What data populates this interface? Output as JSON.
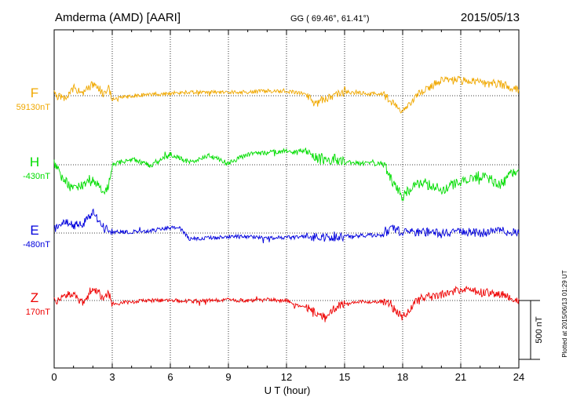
{
  "header": {
    "station": "Amderma (AMD)  [AARI]",
    "coords": "GG ( 69.46°,  61.41°)",
    "date": "2015/05/13"
  },
  "footer": {
    "plotted": "Plotted at 2015/06/13 01:29 UT"
  },
  "scale_bar": {
    "label": "500 nT",
    "value": 500
  },
  "colors": {
    "F": "#f0a800",
    "H": "#00dd00",
    "E": "#0000dd",
    "Z": "#ee0000",
    "axis": "#000000"
  },
  "chart_data": {
    "type": "line",
    "title": "Amderma (AMD)  [AARI]",
    "xlabel": "U T (hour)",
    "ylabel": "",
    "xlim": [
      0,
      24
    ],
    "x_ticks": [
      "0",
      "3",
      "6",
      "9",
      "12",
      "15",
      "18",
      "21",
      "24"
    ],
    "grid": true,
    "y_scale_note": "500 nT",
    "series": [
      {
        "name": "F",
        "baseline_label": "59130nT",
        "baseline": 59130,
        "x": [
          0,
          0.5,
          1,
          1.5,
          2,
          2.5,
          2.8,
          3,
          4,
          5,
          6,
          7,
          8,
          9,
          10,
          11,
          12,
          12.5,
          13,
          13.5,
          14,
          14.5,
          15,
          16,
          17,
          17.5,
          18,
          18.5,
          19,
          20,
          21,
          22,
          23,
          24
        ],
        "values": [
          59140,
          59110,
          59200,
          59150,
          59230,
          59150,
          59210,
          59100,
          59130,
          59140,
          59150,
          59160,
          59160,
          59160,
          59160,
          59170,
          59165,
          59160,
          59150,
          59060,
          59110,
          59130,
          59160,
          59150,
          59140,
          59070,
          58980,
          59100,
          59170,
          59260,
          59260,
          59240,
          59230,
          59180
        ]
      },
      {
        "name": "H",
        "baseline_label": "-430nT",
        "baseline": -430,
        "x": [
          0,
          0.5,
          1,
          1.5,
          2,
          2.5,
          2.8,
          3,
          4,
          5,
          6,
          7,
          8,
          9,
          10,
          11,
          12,
          12.5,
          13,
          13.5,
          14,
          14.5,
          15,
          16,
          17,
          17.5,
          18,
          18.5,
          19,
          20,
          21,
          22,
          23,
          24
        ],
        "values": [
          -430,
          -560,
          -640,
          -600,
          -560,
          -650,
          -620,
          -430,
          -380,
          -440,
          -340,
          -410,
          -350,
          -420,
          -340,
          -330,
          -310,
          -320,
          -300,
          -360,
          -410,
          -380,
          -410,
          -420,
          -420,
          -580,
          -700,
          -620,
          -580,
          -640,
          -580,
          -520,
          -600,
          -460
        ]
      },
      {
        "name": "E",
        "baseline_label": "-480nT",
        "baseline": -480,
        "x": [
          0,
          0.5,
          1,
          1.5,
          2,
          2.5,
          2.8,
          3,
          4,
          5,
          6,
          6.5,
          7,
          8,
          9,
          10,
          11,
          12,
          13,
          14,
          15,
          16,
          17,
          17.5,
          18,
          19,
          20,
          21,
          22,
          23,
          24
        ],
        "values": [
          -460,
          -380,
          -420,
          -400,
          -300,
          -420,
          -440,
          -470,
          -470,
          -460,
          -430,
          -440,
          -530,
          -520,
          -510,
          -510,
          -520,
          -520,
          -510,
          -520,
          -510,
          -500,
          -500,
          -440,
          -480,
          -470,
          -480,
          -470,
          -480,
          -460,
          -480
        ]
      },
      {
        "name": "Z",
        "baseline_label": "170nT",
        "baseline": 170,
        "x": [
          0,
          0.5,
          1,
          1.5,
          2,
          2.5,
          2.8,
          3,
          4,
          5,
          6,
          7,
          8,
          9,
          10,
          11,
          12,
          12.5,
          13,
          13.5,
          14,
          14.5,
          15,
          16,
          17,
          17.5,
          18,
          18.5,
          19,
          20,
          21,
          22,
          23,
          24
        ],
        "values": [
          160,
          200,
          240,
          140,
          290,
          200,
          240,
          140,
          160,
          170,
          170,
          165,
          170,
          175,
          170,
          175,
          170,
          130,
          110,
          80,
          20,
          110,
          150,
          160,
          160,
          110,
          20,
          130,
          190,
          220,
          260,
          240,
          230,
          170
        ]
      }
    ]
  }
}
